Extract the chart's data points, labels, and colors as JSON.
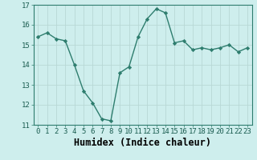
{
  "x": [
    0,
    1,
    2,
    3,
    4,
    5,
    6,
    7,
    8,
    9,
    10,
    11,
    12,
    13,
    14,
    15,
    16,
    17,
    18,
    19,
    20,
    21,
    22,
    23
  ],
  "y": [
    15.4,
    15.6,
    15.3,
    15.2,
    14.0,
    12.7,
    12.1,
    11.3,
    11.2,
    13.6,
    13.9,
    15.4,
    16.3,
    16.8,
    16.6,
    15.1,
    15.2,
    14.75,
    14.85,
    14.75,
    14.85,
    15.0,
    14.65,
    14.85
  ],
  "line_color": "#2e7d6e",
  "marker": "D",
  "marker_size": 2.2,
  "bg_color": "#ceeeed",
  "grid_color": "#b8d8d6",
  "xlabel": "Humidex (Indice chaleur)",
  "ylim": [
    11,
    17
  ],
  "xlim_min": -0.5,
  "xlim_max": 23.5,
  "yticks": [
    11,
    12,
    13,
    14,
    15,
    16,
    17
  ],
  "xticks": [
    0,
    1,
    2,
    3,
    4,
    5,
    6,
    7,
    8,
    9,
    10,
    11,
    12,
    13,
    14,
    15,
    16,
    17,
    18,
    19,
    20,
    21,
    22,
    23
  ],
  "xtick_labels": [
    "0",
    "1",
    "2",
    "3",
    "4",
    "5",
    "6",
    "7",
    "8",
    "9",
    "10",
    "11",
    "12",
    "13",
    "14",
    "15",
    "16",
    "17",
    "18",
    "19",
    "20",
    "21",
    "22",
    "23"
  ],
  "tick_fontsize": 6.5,
  "xlabel_fontsize": 8.5,
  "linewidth": 1.0
}
